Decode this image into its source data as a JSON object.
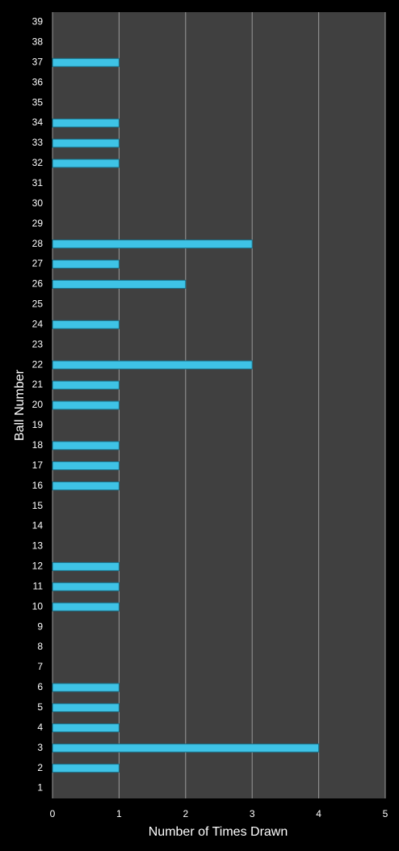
{
  "chart_data": {
    "type": "barh",
    "x_label": "Number of Times Drawn",
    "y_label": "Ball Number",
    "categories": [
      "1",
      "2",
      "3",
      "4",
      "5",
      "6",
      "7",
      "8",
      "9",
      "10",
      "11",
      "12",
      "13",
      "14",
      "15",
      "16",
      "17",
      "18",
      "19",
      "20",
      "21",
      "22",
      "23",
      "24",
      "25",
      "26",
      "27",
      "28",
      "29",
      "30",
      "31",
      "32",
      "33",
      "34",
      "35",
      "36",
      "37",
      "38",
      "39"
    ],
    "values": [
      0,
      1,
      4,
      1,
      1,
      1,
      0,
      0,
      0,
      1,
      1,
      1,
      0,
      0,
      0,
      1,
      1,
      1,
      0,
      1,
      1,
      3,
      0,
      1,
      0,
      2,
      1,
      3,
      0,
      0,
      0,
      1,
      1,
      1,
      0,
      0,
      1,
      0,
      0
    ],
    "color": "#3ec3e6",
    "xlim": [
      0,
      5
    ],
    "xticks": [
      0,
      1,
      2,
      3,
      4,
      5
    ],
    "grid": true
  }
}
